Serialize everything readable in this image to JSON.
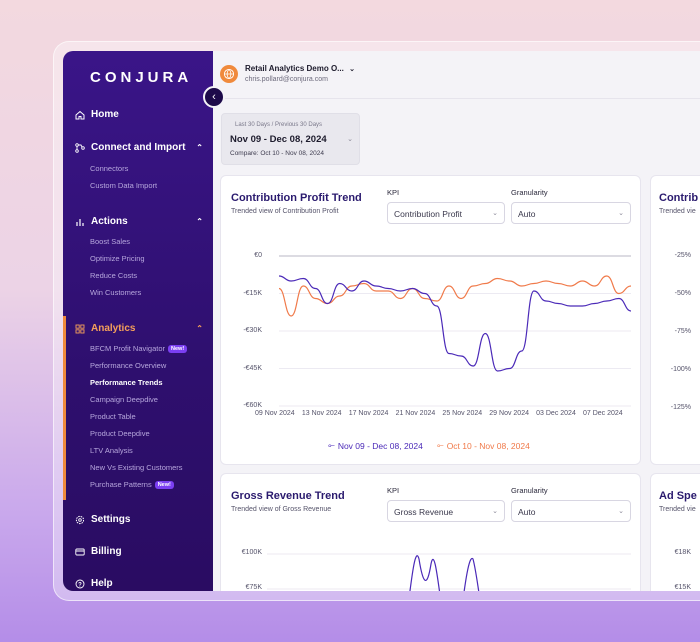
{
  "brand": {
    "logo": "CONJURA"
  },
  "org": {
    "name": "Retail Analytics Demo O...",
    "email": "chris.pollard@conjura.com"
  },
  "sidebar": {
    "home": "Home",
    "connect": {
      "label": "Connect and Import",
      "items": [
        "Connectors",
        "Custom Data Import"
      ]
    },
    "actions": {
      "label": "Actions",
      "items": [
        "Boost Sales",
        "Optimize Pricing",
        "Reduce Costs",
        "Win Customers"
      ]
    },
    "analytics": {
      "label": "Analytics",
      "items": [
        "BFCM Profit Navigator",
        "Performance Overview",
        "Performance Trends",
        "Campaign Deepdive",
        "Product Table",
        "Product Deepdive",
        "LTV Analysis",
        "New Vs Existing Customers",
        "Purchase Patterns"
      ],
      "badge": "New!"
    },
    "settings": "Settings",
    "billing": "Billing",
    "help": "Help"
  },
  "datepicker": {
    "label": "Last 30 Days / Previous 30 Days",
    "range": "Nov 09 - Dec 08, 2024",
    "compare": "Compare: Oct 10 - Nov 08, 2024"
  },
  "cards": {
    "contribution": {
      "title": "Contribution Profit Trend",
      "subtitle": "Trended view of Contribution Profit",
      "kpi_label": "KPI",
      "kpi_value": "Contribution Profit",
      "gran_label": "Granularity",
      "gran_value": "Auto"
    },
    "contribution_right": {
      "title": "Contrib",
      "subtitle": "Trended vie",
      "yticks": [
        "-25%",
        "-50%",
        "-75%",
        "-100%",
        "-125%"
      ]
    },
    "gross": {
      "title": "Gross Revenue Trend",
      "subtitle": "Trended view of Gross Revenue",
      "kpi_label": "KPI",
      "kpi_value": "Gross Revenue",
      "gran_label": "Granularity",
      "gran_value": "Auto",
      "yticks": [
        "€100K",
        "€75K"
      ]
    },
    "adspend_right": {
      "title": "Ad Spe",
      "subtitle": "Trended vie",
      "yticks": [
        "€18K",
        "€15K"
      ]
    }
  },
  "colors": {
    "current": "#4b2ab8",
    "previous": "#f07a4a",
    "accent": "#f08a3c"
  },
  "chart_data": {
    "type": "line",
    "title": "Contribution Profit Trend",
    "y_tick_labels": [
      "€0",
      "-€15K",
      "-€30K",
      "-€45K",
      "-€60K"
    ],
    "ylim": [
      -60000,
      0
    ],
    "x_tick_labels": [
      "09 Nov 2024",
      "13 Nov 2024",
      "17 Nov 2024",
      "21 Nov 2024",
      "25 Nov 2024",
      "29 Nov 2024",
      "03 Dec 2024",
      "07 Dec 2024"
    ],
    "series": [
      {
        "name": "Nov 09 - Dec 08, 2024",
        "color": "#4b2ab8",
        "values": [
          -8000,
          -10000,
          -9000,
          -13000,
          -19000,
          -11000,
          -14000,
          -10000,
          -12000,
          -13000,
          -14000,
          -13000,
          -15000,
          -20000,
          -39000,
          -40000,
          -44000,
          -31000,
          -46000,
          -45000,
          -38000,
          -14000,
          -18000,
          -19000,
          -20000,
          -20000,
          -19000,
          -18000,
          -17000,
          -22000
        ]
      },
      {
        "name": "Oct 10 - Nov 08, 2024",
        "color": "#f07a4a",
        "values": [
          -13000,
          -24000,
          -12000,
          -17000,
          -19000,
          -16000,
          -12000,
          -11000,
          -14000,
          -14000,
          -17000,
          -13000,
          -17000,
          -18000,
          -12000,
          -17000,
          -12000,
          -11000,
          -9000,
          -10000,
          -12000,
          -11000,
          -10000,
          -11000,
          -12000,
          -10000,
          -12000,
          -8000,
          -15000,
          -12000
        ]
      }
    ]
  },
  "chart_gross": {
    "type": "line",
    "y_tick_labels": [
      "€100K",
      "€75K"
    ],
    "series": [
      {
        "name": "Nov 09 - Dec 08, 2024",
        "color": "#4b2ab8",
        "values": [
          70000,
          98000,
          72000,
          70000,
          95000,
          70000
        ]
      }
    ]
  }
}
